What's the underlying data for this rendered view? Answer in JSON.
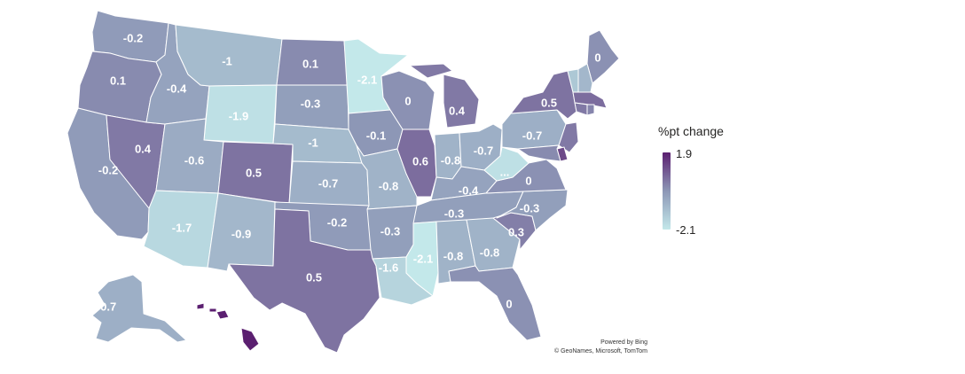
{
  "legend": {
    "title": "%pt change",
    "max_label": "1.9",
    "min_label": "-2.1"
  },
  "attribution": {
    "powered": "Powered by Bing",
    "credits": "© GeoNames, Microsoft, TomTom"
  },
  "colors": {
    "low": "#c3e8ea",
    "mid": "#8d97b6",
    "high": "#5b1f70",
    "label_dark_text": "#ffffff"
  },
  "scale": {
    "min": -2.1,
    "max": 1.9
  },
  "states": [
    {
      "abbr": "WA",
      "value": -0.2,
      "label": "-0.2"
    },
    {
      "abbr": "OR",
      "value": 0.1,
      "label": "0.1"
    },
    {
      "abbr": "CA",
      "value": -0.2,
      "label": "-0.2"
    },
    {
      "abbr": "NV",
      "value": 0.4,
      "label": "0.4"
    },
    {
      "abbr": "ID",
      "value": -0.4,
      "label": "-0.4"
    },
    {
      "abbr": "MT",
      "value": -1,
      "label": "-1"
    },
    {
      "abbr": "WY",
      "value": -1.9,
      "label": "-1.9"
    },
    {
      "abbr": "UT",
      "value": -0.6,
      "label": "-0.6"
    },
    {
      "abbr": "AZ",
      "value": -1.7,
      "label": "-1.7"
    },
    {
      "abbr": "CO",
      "value": 0.5,
      "label": "0.5"
    },
    {
      "abbr": "NM",
      "value": -0.9,
      "label": "-0.9"
    },
    {
      "abbr": "ND",
      "value": 0.1,
      "label": "0.1"
    },
    {
      "abbr": "SD",
      "value": -0.3,
      "label": "-0.3"
    },
    {
      "abbr": "NE",
      "value": -1,
      "label": "-1"
    },
    {
      "abbr": "KS",
      "value": -0.7,
      "label": "-0.7"
    },
    {
      "abbr": "OK",
      "value": -0.2,
      "label": "-0.2"
    },
    {
      "abbr": "TX",
      "value": 0.5,
      "label": "0.5"
    },
    {
      "abbr": "MN",
      "value": -2.1,
      "label": "-2.1"
    },
    {
      "abbr": "IA",
      "value": -0.1,
      "label": "-0.1"
    },
    {
      "abbr": "MO",
      "value": -0.8,
      "label": "-0.8"
    },
    {
      "abbr": "AR",
      "value": -0.3,
      "label": "-0.3"
    },
    {
      "abbr": "LA",
      "value": -1.6,
      "label": "-1.6"
    },
    {
      "abbr": "WI",
      "value": 0,
      "label": "0"
    },
    {
      "abbr": "IL",
      "value": 0.6,
      "label": "0.6"
    },
    {
      "abbr": "MI",
      "value": 0.4,
      "label": "0.4"
    },
    {
      "abbr": "IN",
      "value": -0.8,
      "label": "-0.8"
    },
    {
      "abbr": "OH",
      "value": -0.7,
      "label": "-0.7"
    },
    {
      "abbr": "KY",
      "value": -0.4,
      "label": "-0.4"
    },
    {
      "abbr": "TN",
      "value": -0.3,
      "label": "-0.3"
    },
    {
      "abbr": "MS",
      "value": -2.1,
      "label": "-2.1"
    },
    {
      "abbr": "AL",
      "value": -0.8,
      "label": "-0.8"
    },
    {
      "abbr": "GA",
      "value": -0.8,
      "label": "-0.8"
    },
    {
      "abbr": "FL",
      "value": 0,
      "label": "0"
    },
    {
      "abbr": "SC",
      "value": 0.3,
      "label": "0.3"
    },
    {
      "abbr": "NC",
      "value": -0.3,
      "label": "-0.3"
    },
    {
      "abbr": "VA",
      "value": 0,
      "label": "0"
    },
    {
      "abbr": "WV",
      "value": -1.9,
      "label": "..."
    },
    {
      "abbr": "PA",
      "value": -0.7,
      "label": "-0.7"
    },
    {
      "abbr": "NY",
      "value": 0.5,
      "label": "0.5"
    },
    {
      "abbr": "ME",
      "value": 0,
      "label": "0"
    },
    {
      "abbr": "VT",
      "value": -1.3,
      "label": ""
    },
    {
      "abbr": "NH",
      "value": -0.9,
      "label": ""
    },
    {
      "abbr": "MA",
      "value": 0.6,
      "label": ""
    },
    {
      "abbr": "CT",
      "value": 0.4,
      "label": ""
    },
    {
      "abbr": "RI",
      "value": 0.2,
      "label": ""
    },
    {
      "abbr": "NJ",
      "value": 0.4,
      "label": ""
    },
    {
      "abbr": "DE",
      "value": 1.2,
      "label": ""
    },
    {
      "abbr": "MD",
      "value": 0.1,
      "label": ""
    },
    {
      "abbr": "AK",
      "value": -0.7,
      "label": "-0.7"
    },
    {
      "abbr": "HI",
      "value": 1.9,
      "label": ""
    }
  ]
}
